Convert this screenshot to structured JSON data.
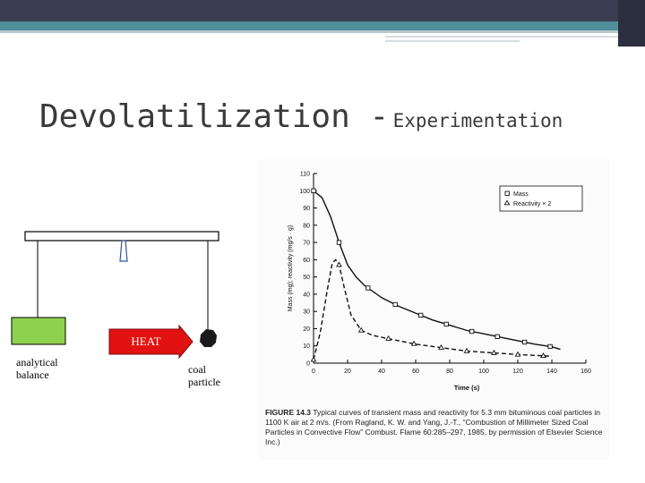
{
  "slide": {
    "title_main": "Devolatilization -",
    "title_sub": "Experimentation",
    "labels": {
      "balance": [
        "analytical",
        "balance"
      ],
      "heat": "HEAT",
      "particle": [
        "coal",
        "particle"
      ]
    },
    "colors": {
      "balance_box": "#8fd14f",
      "heat_arrow": "#e21212",
      "header_dark": "#3b3e52",
      "header_teal": "#4e8f98"
    }
  },
  "figure": {
    "caption_label": "FIGURE 14.3",
    "caption_text": "Typical curves of transient mass and reactivity for 5.3 mm bituminous coal particles in 1100 K air at 2 m/s. (From Ragland, K. W. and Yang, J.-T., “Combustion of Millimeter Sized Coal Particles in Convective Flow” Combust. Flame 60:285–297, 1985, by permission of Elsevier Science Inc.)"
  },
  "chart_data": {
    "type": "line",
    "xlabel": "Time (s)",
    "ylabel": "Mass (mg); reactivity (mg/s · g)",
    "xlim": [
      0,
      160
    ],
    "ylim": [
      0,
      110
    ],
    "x_ticks": [
      "0",
      "20",
      "40",
      "60",
      "80",
      "100",
      "120",
      "140",
      "160"
    ],
    "y_ticks": [
      "0",
      "10",
      "20",
      "30",
      "40",
      "50",
      "60",
      "70",
      "80",
      "90",
      "100",
      "110"
    ],
    "legend_position": "top-right",
    "series": [
      {
        "name": "Mass",
        "line_style": "solid",
        "marker": "square",
        "x": [
          0,
          5,
          10,
          15,
          20,
          25,
          30,
          40,
          50,
          60,
          70,
          80,
          90,
          100,
          110,
          120,
          130,
          140,
          145
        ],
        "y": [
          100,
          96,
          85,
          70,
          57,
          50,
          45,
          38,
          33,
          29,
          25,
          22,
          19,
          17,
          15,
          13,
          11,
          9.5,
          8
        ]
      },
      {
        "name": "Reactivity × 2",
        "line_style": "dashed",
        "marker": "triangle",
        "x": [
          0,
          4,
          8,
          11,
          13,
          15,
          18,
          22,
          28,
          35,
          45,
          60,
          75,
          90,
          105,
          120,
          130,
          140
        ],
        "y": [
          2,
          18,
          42,
          58,
          60,
          57,
          44,
          28,
          19,
          16,
          14,
          11,
          9,
          7,
          6,
          5,
          4.5,
          4
        ]
      }
    ],
    "mass_markers_x": [
      0,
      15,
      32,
      48,
      63,
      78,
      93,
      108,
      124,
      139
    ],
    "reactivity_markers_x": [
      0,
      15,
      28,
      44,
      59,
      75,
      90,
      106,
      120,
      135
    ]
  }
}
